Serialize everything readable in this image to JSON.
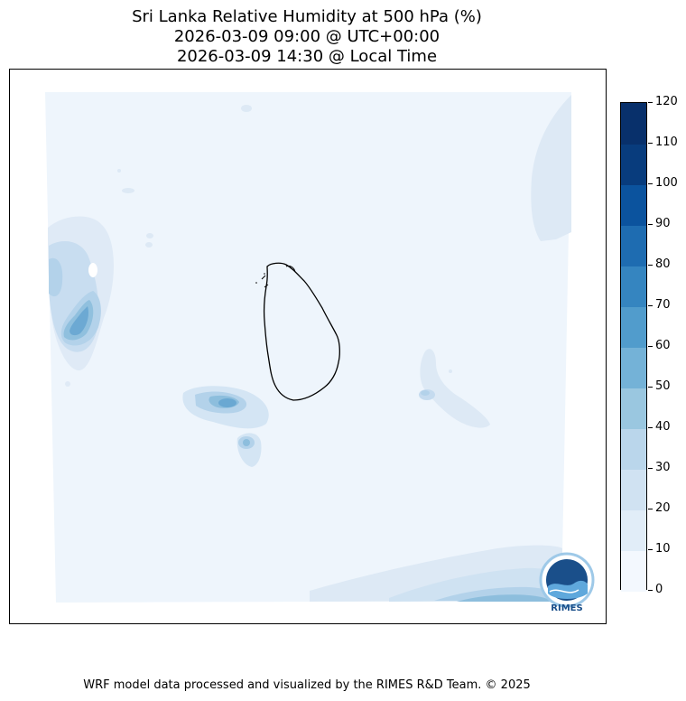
{
  "title": {
    "line1": "Sri Lanka Relative Humidity at 500 hPa (%)",
    "line2": "2026-03-09 09:00 @ UTC+00:00",
    "line3": "2026-03-09 14:30 @ Local Time"
  },
  "colorbar": {
    "levels": [
      "0",
      "10",
      "20",
      "30",
      "40",
      "50",
      "60",
      "70",
      "80",
      "90",
      "100",
      "110",
      "120"
    ],
    "colors": [
      "#f3f8fe",
      "#e1edf8",
      "#d0e2f2",
      "#bad6eb",
      "#9ac7e0",
      "#74b2d7",
      "#519ccc",
      "#3585c0",
      "#1e6cb1",
      "#0b539e",
      "#083c7d",
      "#08306b"
    ]
  },
  "logo": {
    "name": "RIMES",
    "label": "RIMES"
  },
  "footer": "WRF model data processed and visualized by the RIMES R&D Team. © 2025"
}
